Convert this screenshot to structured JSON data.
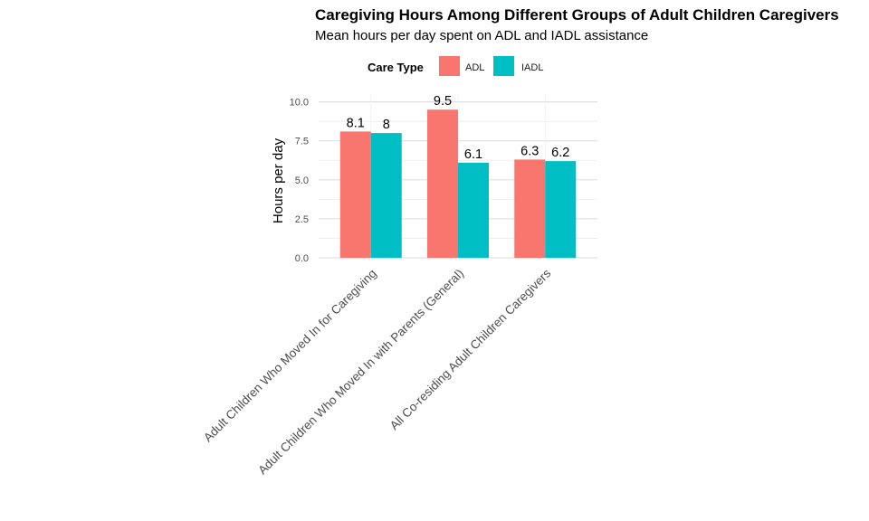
{
  "chart_data": {
    "type": "bar",
    "title": "Caregiving Hours Among Different Groups of Adult Children Caregivers",
    "subtitle": "Mean hours per day spent on ADL and IADL assistance",
    "xlabel": "",
    "ylabel": "Hours per day",
    "ylim": [
      0,
      10.5
    ],
    "yticks": [
      "0.0",
      "2.5",
      "5.0",
      "7.5",
      "10.0"
    ],
    "grid": true,
    "legend": {
      "title": "Care Type",
      "position": "top"
    },
    "categories": [
      "Adult Children Who Moved In for Caregiving",
      "Adult Children Who Moved In with Parents (General)",
      "All Co-residing Adult Children Caregivers"
    ],
    "series": [
      {
        "name": "ADL",
        "color": "#F8766D",
        "values": [
          8.1,
          9.5,
          6.3
        ],
        "labels": [
          "8.1",
          "9.5",
          "6.3"
        ]
      },
      {
        "name": "IADL",
        "color": "#00BFC4",
        "values": [
          8.0,
          6.1,
          6.2
        ],
        "labels": [
          "8",
          "6.1",
          "6.2"
        ]
      }
    ]
  }
}
